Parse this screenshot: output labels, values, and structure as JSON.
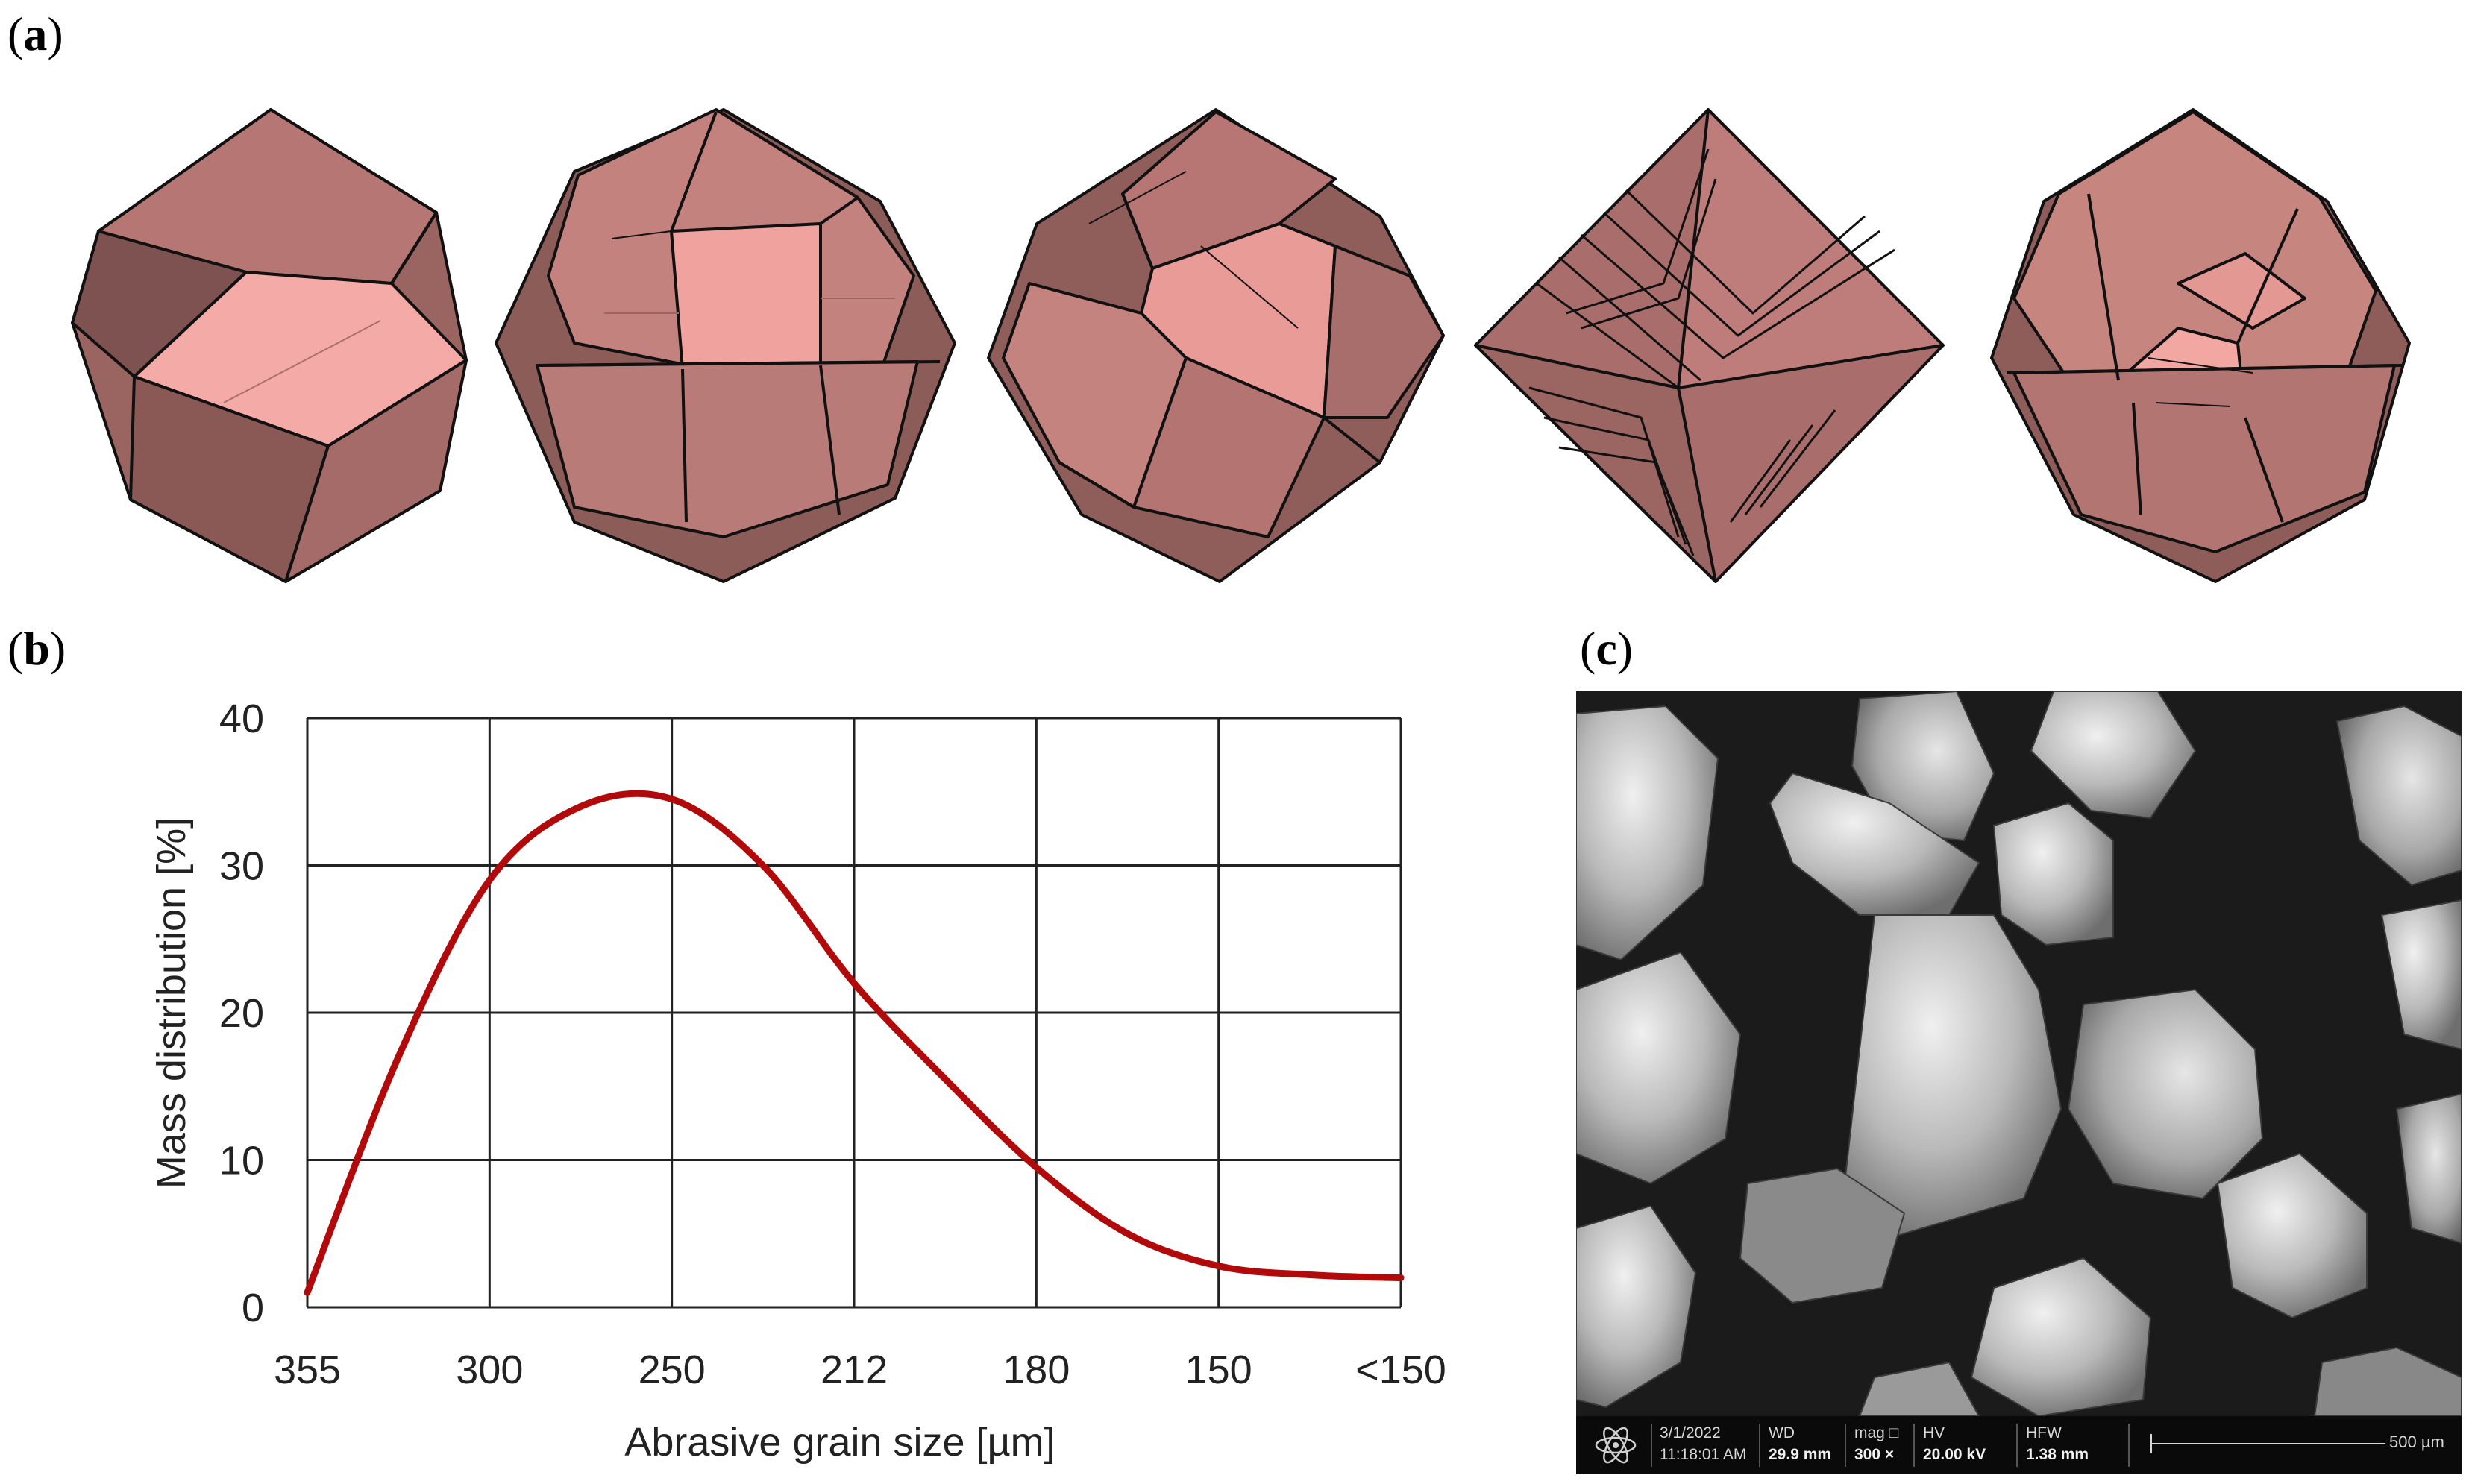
{
  "panel_labels": {
    "a": "a",
    "b": "b",
    "c": "c"
  },
  "crystal_icons": [
    "rhombic-dodecahedron-crystal",
    "truncated-crystal",
    "twinned-crystal",
    "layered-octahedral-crystal",
    "truncated-octahedron-crystal"
  ],
  "colors": {
    "crystal_face_light": "#f3aaa6",
    "crystal_face_mid": "#c98a86",
    "crystal_face_dark": "#8e5c59",
    "curve": "#b20a0a",
    "sem_bg": "#1b1b1b"
  },
  "chart_data": {
    "type": "line",
    "title": "",
    "xlabel": "Abrasive grain size [µm]",
    "ylabel": "Mass distribution [%]",
    "categories": [
      "355",
      "300",
      "250",
      "212",
      "180",
      "150",
      "<150"
    ],
    "ylim": [
      0,
      40
    ],
    "yticks": [
      "0",
      "10",
      "20",
      "30",
      "40"
    ],
    "grid": true,
    "series": [
      {
        "name": "Mass distribution",
        "x": [
          0,
          0.5,
          1.0,
          1.5,
          2.0,
          2.5,
          3.0,
          3.5,
          4.0,
          4.5,
          5.0,
          5.5,
          6.0
        ],
        "values": [
          1,
          17,
          29,
          34,
          34.5,
          30,
          22,
          15.5,
          9.5,
          5,
          2.8,
          2.2,
          2
        ]
      }
    ]
  },
  "sem": {
    "date": "3/1/2022",
    "time": "11:18:01 AM",
    "wd_label": "WD",
    "wd_value": "29.9 mm",
    "mag_label": "mag □",
    "mag_value": "300 ×",
    "hv_label": "HV",
    "hv_value": "20.00 kV",
    "hfw_label": "HFW",
    "hfw_value": "1.38 mm",
    "scale_label": "500 µm"
  }
}
